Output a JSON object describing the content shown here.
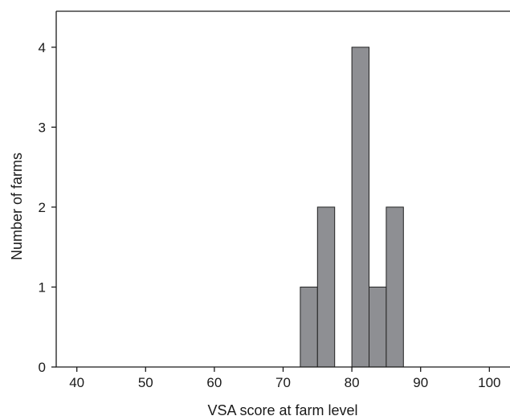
{
  "chart_data": {
    "type": "bar",
    "subtype": "histogram",
    "xlabel": "VSA score at farm level",
    "ylabel": "Number of farms",
    "xlim": [
      37,
      103
    ],
    "ylim": [
      0,
      4.45
    ],
    "xticks": [
      40,
      50,
      60,
      70,
      80,
      90,
      100
    ],
    "yticks": [
      0,
      1,
      2,
      3,
      4
    ],
    "bin_width": 2.5,
    "bins": [
      {
        "x0": 72.5,
        "x1": 75.0,
        "count": 1
      },
      {
        "x0": 75.0,
        "x1": 77.5,
        "count": 2
      },
      {
        "x0": 80.0,
        "x1": 82.5,
        "count": 4
      },
      {
        "x0": 82.5,
        "x1": 85.0,
        "count": 1
      },
      {
        "x0": 85.0,
        "x1": 87.5,
        "count": 2
      }
    ],
    "bar_color": "#8e8f93",
    "grid": false,
    "legend": "none"
  }
}
